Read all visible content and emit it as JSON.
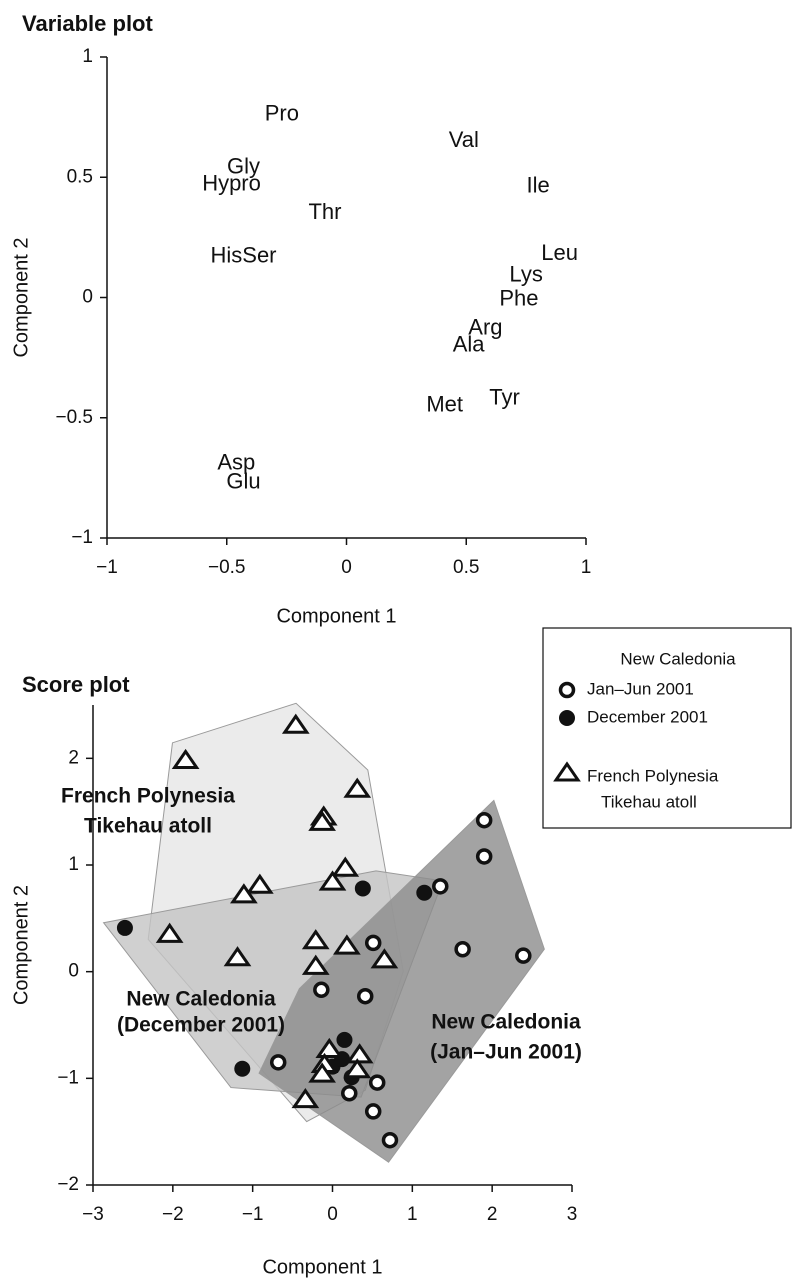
{
  "chart_data": [
    {
      "type": "text-scatter",
      "title": "Variable plot",
      "xlabel": "Component 1",
      "ylabel": "Component 2",
      "point_labels": [
        "Pro",
        "Val",
        "Gly",
        "Hypro",
        "Ile",
        "Thr",
        "HisSer",
        "Leu",
        "Lys",
        "Phe",
        "Arg",
        "Ala",
        "Tyr",
        "Met",
        "Asp",
        "Glu"
      ],
      "x": [
        -0.27,
        0.49,
        -0.43,
        -0.48,
        0.8,
        -0.09,
        -0.43,
        0.89,
        0.75,
        0.72,
        0.58,
        0.51,
        0.66,
        0.41,
        -0.46,
        -0.43
      ],
      "values": [
        0.76,
        0.65,
        0.54,
        0.47,
        0.46,
        0.35,
        0.17,
        0.18,
        0.09,
        -0.01,
        -0.13,
        -0.2,
        -0.42,
        -0.45,
        -0.69,
        -0.77
      ],
      "color": "#111111",
      "xlim": [
        -1,
        1
      ],
      "xticks": [
        {
          "value": -1,
          "label": "−1"
        },
        {
          "value": -0.5,
          "label": "−0.5"
        },
        0,
        0.5,
        1
      ],
      "ylim": [
        -1,
        1
      ],
      "yticks": [
        {
          "value": -1,
          "label": "−1"
        },
        {
          "value": -0.5,
          "label": "−0.5"
        },
        0,
        0.5,
        1
      ]
    },
    {
      "type": "scatter",
      "title": "Score plot",
      "xlabel": "Component 1",
      "ylabel": "Component 2",
      "legend_title": "New Caledonia",
      "series": [
        {
          "name": "Jan–Jun 2001",
          "marker": "open-circle",
          "color": "#111111",
          "hull_color": "#8c8c8c",
          "x": [
            1.9,
            1.9,
            1.35,
            2.39,
            1.63,
            0.51,
            -0.14,
            0.41,
            -0.68,
            0.56,
            0.21,
            0.51,
            0.72
          ],
          "values": [
            1.42,
            1.08,
            0.8,
            0.15,
            0.21,
            0.27,
            -0.17,
            -0.23,
            -0.85,
            -1.04,
            -1.14,
            -1.31,
            -1.58
          ]
        },
        {
          "name": "December 2001",
          "marker": "filled-circle",
          "color": "#111111",
          "hull_color": "#c4c4c4",
          "x": [
            -2.6,
            0.38,
            1.15,
            -1.13,
            0.15,
            0.24,
            0.0,
            0.12
          ],
          "values": [
            0.41,
            0.78,
            0.74,
            -0.91,
            -0.64,
            -0.99,
            -0.89,
            -0.82
          ]
        },
        {
          "name": "French Polynesia",
          "subname": "Tikehau atoll",
          "marker": "triangle",
          "color": "#111111",
          "hull_color": "#e6e6e6",
          "x": [
            -0.46,
            -1.84,
            0.31,
            -0.11,
            -0.13,
            0.16,
            -0.91,
            -1.11,
            0.0,
            -2.04,
            -1.19,
            -0.21,
            -0.21,
            0.18,
            0.65,
            -0.04,
            0.34,
            -0.1,
            0.31,
            -0.13,
            -0.34
          ],
          "values": [
            2.31,
            1.98,
            1.71,
            1.45,
            1.4,
            0.97,
            0.81,
            0.72,
            0.84,
            0.35,
            0.13,
            0.29,
            0.05,
            0.24,
            0.11,
            -0.73,
            -0.78,
            -0.87,
            -0.92,
            -0.96,
            -1.2
          ]
        }
      ],
      "annotations": [
        {
          "lines": [
            "French Polynesia",
            "Tikehau atoll"
          ]
        },
        {
          "lines": [
            "New Caledonia",
            "(December 2001)"
          ]
        },
        {
          "lines": [
            "New Caledonia",
            "(Jan–Jun 2001)"
          ]
        }
      ],
      "xlim": [
        -3,
        3
      ],
      "xticks": [
        {
          "value": -3,
          "label": "−3"
        },
        {
          "value": -2,
          "label": "−2"
        },
        {
          "value": -1,
          "label": "−1"
        },
        0,
        1,
        2,
        3
      ],
      "ylim": [
        -2,
        2.5
      ],
      "yticks": [
        {
          "value": -2,
          "label": "−2"
        },
        {
          "value": -1,
          "label": "−1"
        },
        0,
        1,
        2
      ]
    }
  ]
}
